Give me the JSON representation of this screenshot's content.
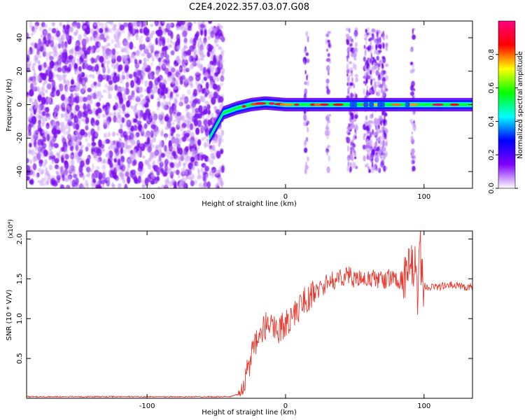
{
  "figure": {
    "title": "C2E4.2022.357.03.07.G08"
  },
  "chart_data": [
    {
      "type": "heatmap",
      "xlabel": "Height of straight line (km)",
      "ylabel": "Frequency (Hz)",
      "xlim": [
        -187,
        135
      ],
      "ylim": [
        -50,
        50
      ],
      "xticks": [
        -100,
        0,
        100
      ],
      "yticks": [
        -40,
        -20,
        0,
        20,
        40
      ],
      "colorbar": {
        "label": "Normalized spectral amplitude",
        "range": [
          0,
          1
        ],
        "ticks": [
          "0.0",
          "0.2",
          "0.4",
          "0.6",
          "0.8"
        ],
        "tick_values": [
          0,
          0.2,
          0.4,
          0.6,
          0.8
        ],
        "colors": [
          "#ffffff",
          "#8000ff",
          "#0000ff",
          "#00ffff",
          "#00ff00",
          "#ffff00",
          "#ff0000",
          "#ff0080"
        ]
      },
      "regions": [
        {
          "x": [
            -187,
            -45
          ],
          "y": [
            -50,
            50
          ],
          "description_level": 0.2
        },
        {
          "x": [
            -45,
            135
          ],
          "y": [
            -2,
            2
          ],
          "description_level": 0.45
        }
      ],
      "line_points": {
        "x": [
          -55,
          -45,
          -35,
          -25,
          -15,
          0,
          20,
          45,
          75,
          100,
          135
        ],
        "y": [
          -20,
          -5,
          -2,
          0,
          1,
          0,
          0,
          0,
          0,
          0,
          0
        ]
      },
      "spikes_x": [
        15,
        31,
        48,
        60,
        68,
        72,
        92
      ]
    },
    {
      "type": "line",
      "xlabel": "Height of straight line (km)",
      "ylabel": "SNR (10 * V/V)",
      "y_multiplier": "(x10⁴)",
      "xlim": [
        -187,
        135
      ],
      "ylim": [
        0,
        2.1
      ],
      "xticks": [
        -100,
        0,
        100
      ],
      "yticks": [
        "0.5",
        "1.0",
        "1.5",
        "2.0"
      ],
      "ytick_values": [
        0.5,
        1.0,
        1.5,
        2.0
      ],
      "color": "#e83a30",
      "series": [
        {
          "x": [
            -187,
            -160,
            -130,
            -100,
            -70,
            -40,
            -34,
            -30,
            -27,
            -24,
            -20,
            -15,
            -10,
            -5,
            0,
            5,
            10,
            15,
            20,
            25,
            30,
            35,
            40,
            45,
            50,
            55,
            60,
            65,
            70,
            75,
            80,
            85,
            90,
            93,
            95,
            97,
            100,
            110,
            120,
            130,
            135
          ],
          "values": [
            0.02,
            0.02,
            0.02,
            0.02,
            0.02,
            0.02,
            0.05,
            0.22,
            0.4,
            0.55,
            0.72,
            0.9,
            0.95,
            0.85,
            0.95,
            1.0,
            1.15,
            1.25,
            1.3,
            1.38,
            1.45,
            1.48,
            1.52,
            1.55,
            1.5,
            1.48,
            1.5,
            1.5,
            1.48,
            1.5,
            1.5,
            1.48,
            1.55,
            1.7,
            1.2,
            1.9,
            1.4,
            1.4,
            1.42,
            1.4,
            1.4
          ]
        }
      ]
    }
  ]
}
